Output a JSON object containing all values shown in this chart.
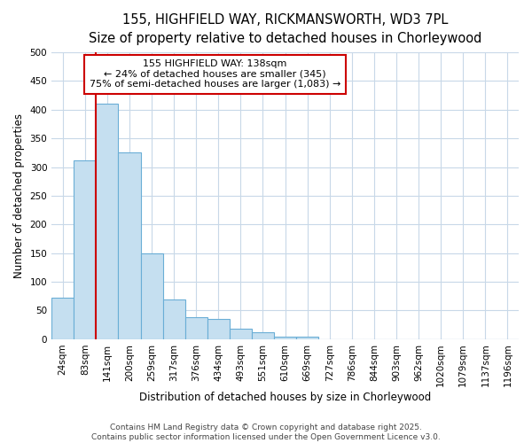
{
  "title_line1": "155, HIGHFIELD WAY, RICKMANSWORTH, WD3 7PL",
  "title_line2": "Size of property relative to detached houses in Chorleywood",
  "xlabel": "Distribution of detached houses by size in Chorleywood",
  "ylabel": "Number of detached properties",
  "categories": [
    "24sqm",
    "83sqm",
    "141sqm",
    "200sqm",
    "259sqm",
    "317sqm",
    "376sqm",
    "434sqm",
    "493sqm",
    "551sqm",
    "610sqm",
    "669sqm",
    "727sqm",
    "786sqm",
    "844sqm",
    "903sqm",
    "962sqm",
    "1020sqm",
    "1079sqm",
    "1137sqm",
    "1196sqm"
  ],
  "values": [
    72,
    312,
    410,
    325,
    150,
    70,
    38,
    35,
    19,
    12,
    5,
    5,
    0,
    0,
    0,
    0,
    0,
    0,
    0,
    0,
    0
  ],
  "bar_color": "#c5dff0",
  "bar_edge_color": "#6aaed6",
  "redline_bin_index": 2,
  "annotation_line1": "155 HIGHFIELD WAY: 138sqm",
  "annotation_line2": "← 24% of detached houses are smaller (345)",
  "annotation_line3": "75% of semi-detached houses are larger (1,083) →",
  "annotation_box_color": "#ffffff",
  "annotation_box_edge": "#cc0000",
  "redline_color": "#cc0000",
  "ylim": [
    0,
    500
  ],
  "yticks": [
    0,
    50,
    100,
    150,
    200,
    250,
    300,
    350,
    400,
    450,
    500
  ],
  "grid_color": "#c8d8e8",
  "background_color": "#ffffff",
  "footer": "Contains HM Land Registry data © Crown copyright and database right 2025.\nContains public sector information licensed under the Open Government Licence v3.0.",
  "title_fontsize": 10.5,
  "subtitle_fontsize": 9.5,
  "axis_label_fontsize": 8.5,
  "tick_fontsize": 7.5,
  "annotation_fontsize": 8,
  "footer_fontsize": 6.5
}
